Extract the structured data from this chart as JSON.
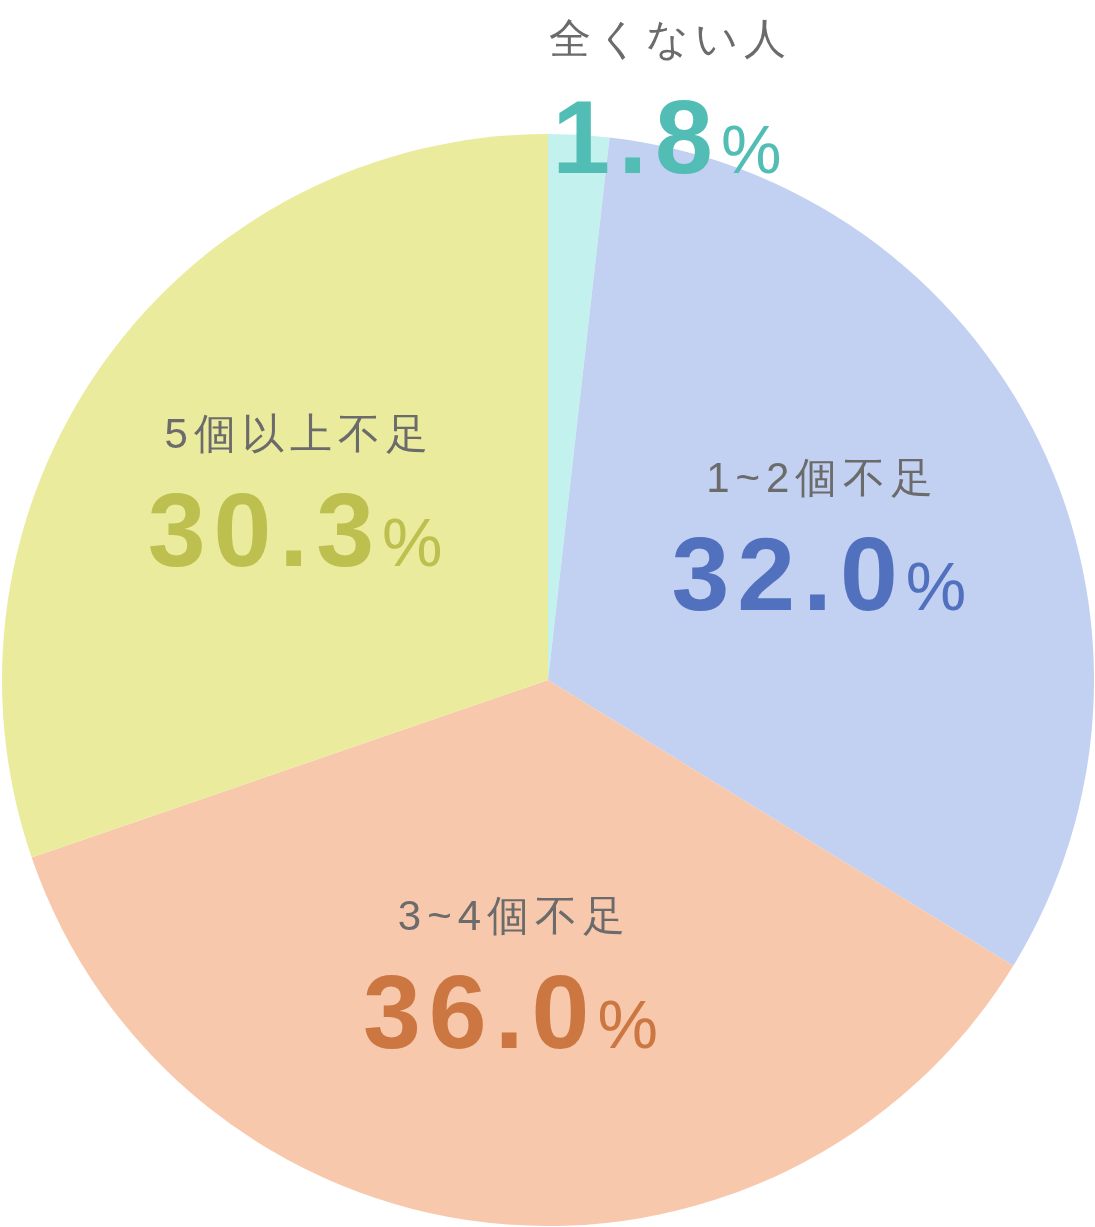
{
  "chart_data": {
    "type": "pie",
    "categories": [
      "全くない人",
      "1~2個不足",
      "3~4個不足",
      "5個以上不足"
    ],
    "values": [
      1.8,
      32.0,
      36.0,
      30.3
    ],
    "value_labels": [
      "1.8%",
      "32.0%",
      "36.0%",
      "30.3%"
    ],
    "colors": [
      "#c3f2ee",
      "#c2d0f2",
      "#f7c8ab",
      "#eaeb9c"
    ]
  }
}
